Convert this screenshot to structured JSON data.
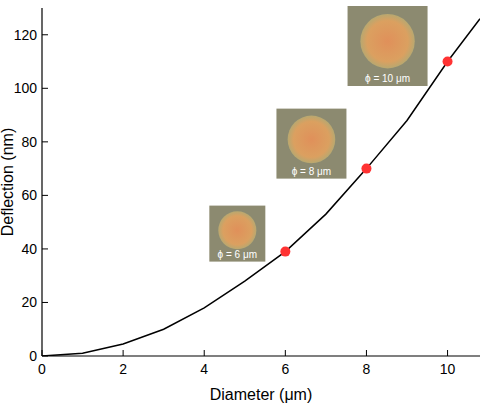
{
  "chart_data": {
    "type": "line",
    "x_label": "Diameter (μm)",
    "y_label": "Deflection (nm)",
    "xlim": [
      0,
      10.8
    ],
    "ylim": [
      0,
      130
    ],
    "xticks": [
      0,
      2,
      4,
      6,
      8,
      10
    ],
    "yticks": [
      0,
      20,
      40,
      60,
      80,
      100,
      120
    ],
    "grid": false,
    "series": [
      {
        "type": "line",
        "color": "#000000",
        "line_style": "solid",
        "x": [
          0,
          1,
          2,
          3,
          4,
          5,
          6,
          7,
          8,
          9,
          10,
          10.8
        ],
        "values": [
          0,
          1,
          4.5,
          10,
          18,
          28,
          39,
          53,
          70,
          88,
          110,
          126
        ]
      },
      {
        "type": "scatter",
        "color": "#ff3333",
        "marker": "circle",
        "x": [
          6,
          8,
          10
        ],
        "values": [
          39,
          70,
          110
        ]
      }
    ],
    "annotations": [
      "ϕ = 6 μm",
      "ϕ = 8 μm",
      "ϕ = 10 μm"
    ]
  }
}
